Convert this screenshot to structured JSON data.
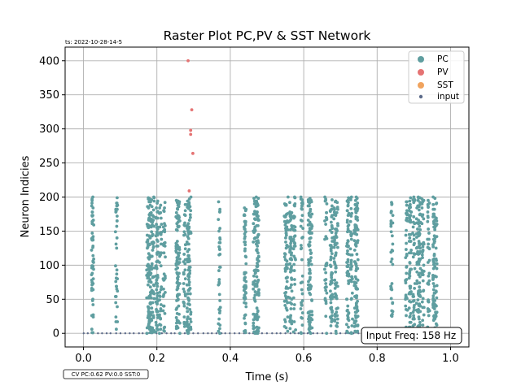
{
  "chart_data": {
    "type": "scatter",
    "title": "Raster Plot PC,PV & SST Network",
    "timestamp_note": "ts: 2022-10-28-14-5",
    "xlabel": "Time (s)",
    "ylabel": "Neuron Indicies",
    "xlim": [
      -0.05,
      1.05
    ],
    "ylim": [
      -20,
      420
    ],
    "x_ticks": [
      0.0,
      0.2,
      0.4,
      0.6,
      0.8,
      1.0
    ],
    "x_tick_labels": [
      "0.0",
      "0.2",
      "0.4",
      "0.6",
      "0.8",
      "1.0"
    ],
    "y_ticks": [
      0,
      50,
      100,
      150,
      200,
      250,
      300,
      350,
      400
    ],
    "y_tick_labels": [
      "0",
      "50",
      "100",
      "150",
      "200",
      "250",
      "300",
      "350",
      "400"
    ],
    "grid": true,
    "legend_position": "top-right",
    "annotation_box": "Input Freq: 158 Hz",
    "cv_note": "CV PC:0.62 PV:0.0 SST:0",
    "series": [
      {
        "name": "PC",
        "color": "#5f9ea0",
        "neuron_index_range": [
          0,
          200
        ],
        "burst_times_s": [
          0.025,
          0.09,
          0.175,
          0.18,
          0.185,
          0.19,
          0.2,
          0.21,
          0.22,
          0.255,
          0.26,
          0.275,
          0.285,
          0.29,
          0.37,
          0.44,
          0.465,
          0.47,
          0.475,
          0.55,
          0.555,
          0.565,
          0.575,
          0.595,
          0.615,
          0.62,
          0.66,
          0.675,
          0.685,
          0.69,
          0.72,
          0.73,
          0.74,
          0.745,
          0.84,
          0.88,
          0.89,
          0.9,
          0.91,
          0.915,
          0.925,
          0.94,
          0.955,
          0.96
        ]
      },
      {
        "name": "PV",
        "color": "#e57373",
        "points": [
          {
            "x": 0.285,
            "y": 400
          },
          {
            "x": 0.295,
            "y": 328
          },
          {
            "x": 0.292,
            "y": 298
          },
          {
            "x": 0.292,
            "y": 292
          },
          {
            "x": 0.298,
            "y": 264
          },
          {
            "x": 0.288,
            "y": 209
          }
        ]
      },
      {
        "name": "SST",
        "color": "#f0a35e",
        "points": []
      },
      {
        "name": "input",
        "color": "#5c6b8a",
        "neuron_index": 0,
        "description_rate_hz": 158
      }
    ]
  }
}
